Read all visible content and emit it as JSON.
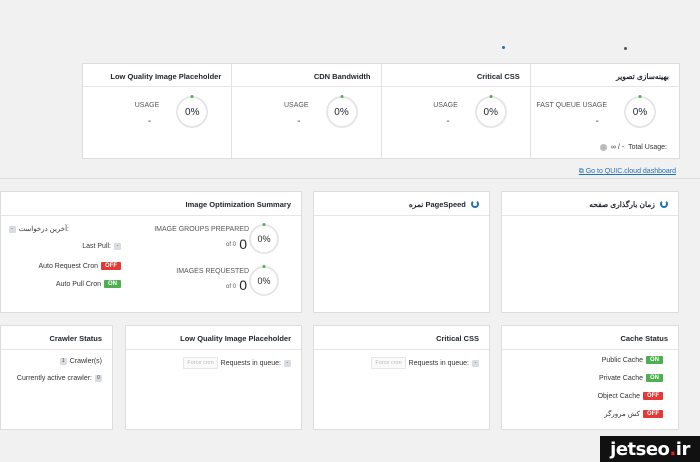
{
  "usage_cards": [
    {
      "title": "Low Quality Image Placeholder",
      "label": "USAGE",
      "value": "-",
      "percent": "0%"
    },
    {
      "title": "CDN Bandwidth",
      "label": "USAGE",
      "value": "-",
      "percent": "0%"
    },
    {
      "title": "Critical CSS",
      "label": "USAGE",
      "value": "-",
      "percent": "0%"
    },
    {
      "title": "بهینه‌سازی تصویر",
      "label": "FAST QUEUE USAGE",
      "value": "-",
      "percent": "0%"
    }
  ],
  "total_usage": {
    "label": "Total Usage:",
    "value": "∞ / -"
  },
  "dashboard_link": "Go to QUIC.cloud dashboard",
  "image_opt": {
    "title": "Image Optimization Summary",
    "groups_label": "IMAGE GROUPS PREPARED",
    "groups_value": "0",
    "groups_of": "of 0",
    "groups_percent": "0%",
    "images_label": "IMAGES REQUESTED",
    "images_value": "0",
    "images_of": "of 0",
    "images_percent": "0%",
    "last_request_label": "آخرین درخواست:",
    "last_request_value": "-",
    "last_pull_label": "Last Pull:",
    "last_pull_value": "-",
    "auto_request_label": "Auto Request Cron",
    "auto_request_state": "OFF",
    "auto_pull_label": "Auto Pull Cron",
    "auto_pull_state": "ON"
  },
  "pagespeed": {
    "title": "نمره PageSpeed"
  },
  "page_load": {
    "title": "زمان بارگذاری صفحه"
  },
  "crawler": {
    "title": "Crawler Status",
    "crawlers_label": "Crawler(s)",
    "crawlers_value": "1",
    "active_label": "Currently active crawler:",
    "active_value": "0"
  },
  "lqip": {
    "title": "Low Quality Image Placeholder",
    "queue_label": "Requests in queue:",
    "queue_value": "-",
    "force_btn": "Force cron"
  },
  "ccss": {
    "title": "Critical CSS",
    "queue_label": "Requests in queue:",
    "queue_value": "-",
    "force_btn": "Force cron"
  },
  "cache": {
    "title": "Cache Status",
    "items": [
      {
        "label": "Public Cache",
        "state": "ON"
      },
      {
        "label": "Private Cache",
        "state": "ON"
      },
      {
        "label": "Object Cache",
        "state": "OFF"
      },
      {
        "label": "کش مرورگر",
        "state": "OFF"
      }
    ]
  },
  "watermark": {
    "brand": "jetseo",
    "dot": ".",
    "tld": "ir"
  },
  "colors": {
    "accent": "#2271b1",
    "on": "#4caf50",
    "off": "#e53935"
  }
}
